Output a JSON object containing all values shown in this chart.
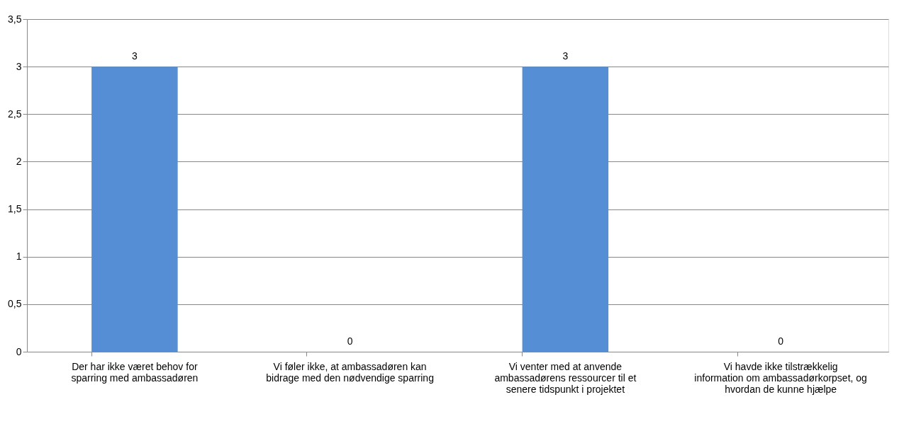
{
  "chart_data": {
    "type": "bar",
    "categories": [
      "Der har ikke været behov for sparring med ambassadøren",
      "Vi føler ikke, at ambassadøren kan bidrage med den nødvendige sparring",
      "Vi venter med at anvende ambassadørens ressourcer til et senere tidspunkt i projektet",
      "Vi havde ikke tilstrækkelig information om ambassadørkorpset, og hvordan de kunne hjælpe"
    ],
    "values": [
      3,
      0,
      3,
      0
    ],
    "color": "#558ed5",
    "ylim": [
      0,
      3.5
    ],
    "yticks": [
      0,
      {
        "value": 0.5,
        "label": "0,5"
      },
      1,
      {
        "value": 1.5,
        "label": "1,5"
      },
      2,
      {
        "value": 2.5,
        "label": "2,5"
      },
      3,
      {
        "value": 3.5,
        "label": "3,5"
      }
    ],
    "grid": "y",
    "data_labels": true
  }
}
